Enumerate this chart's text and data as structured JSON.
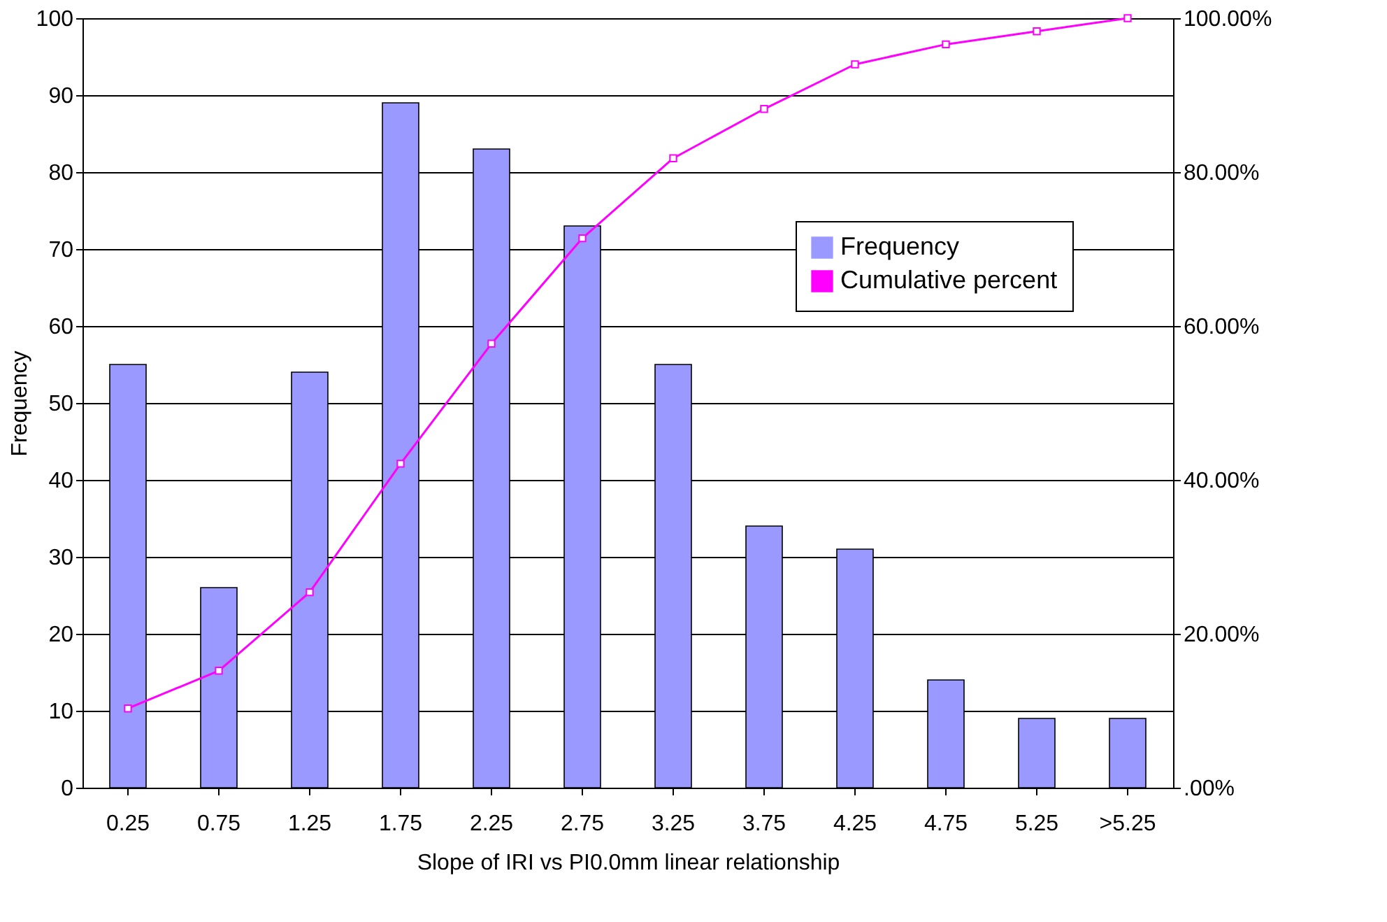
{
  "chart_data": {
    "type": "bar",
    "xlabel": "Slope of IRI vs PI0.0mm linear relationship",
    "ylabel": "Frequency",
    "categories": [
      "0.25",
      "0.75",
      "1.25",
      "1.75",
      "2.25",
      "2.75",
      "3.25",
      "3.75",
      "4.25",
      "4.75",
      "5.25",
      ">5.25"
    ],
    "series": [
      {
        "name": "Frequency",
        "color": "#9999ff",
        "values": [
          55,
          26,
          54,
          89,
          83,
          73,
          55,
          34,
          31,
          14,
          9,
          9
        ]
      },
      {
        "name": "Cumulative percent",
        "type": "line",
        "axis": "y2",
        "color": "#ff00ff",
        "marker": "square",
        "values": [
          10.3,
          15.2,
          25.4,
          42.1,
          57.7,
          71.4,
          81.8,
          88.2,
          94.0,
          96.6,
          98.3,
          100
        ]
      }
    ],
    "ylim": [
      0,
      100
    ],
    "yticks": [
      0,
      10,
      20,
      30,
      40,
      50,
      60,
      70,
      80,
      90,
      100
    ],
    "y2lim": [
      0,
      100
    ],
    "y2ticks": [
      {
        "value": 0,
        "label": ".00%"
      },
      {
        "value": 20,
        "label": "20.00%"
      },
      {
        "value": 40,
        "label": "40.00%"
      },
      {
        "value": 60,
        "label": "60.00%"
      },
      {
        "value": 80,
        "label": "80.00%"
      },
      {
        "value": 100,
        "label": "100.00%"
      }
    ],
    "grid": "y",
    "legend": "right"
  }
}
